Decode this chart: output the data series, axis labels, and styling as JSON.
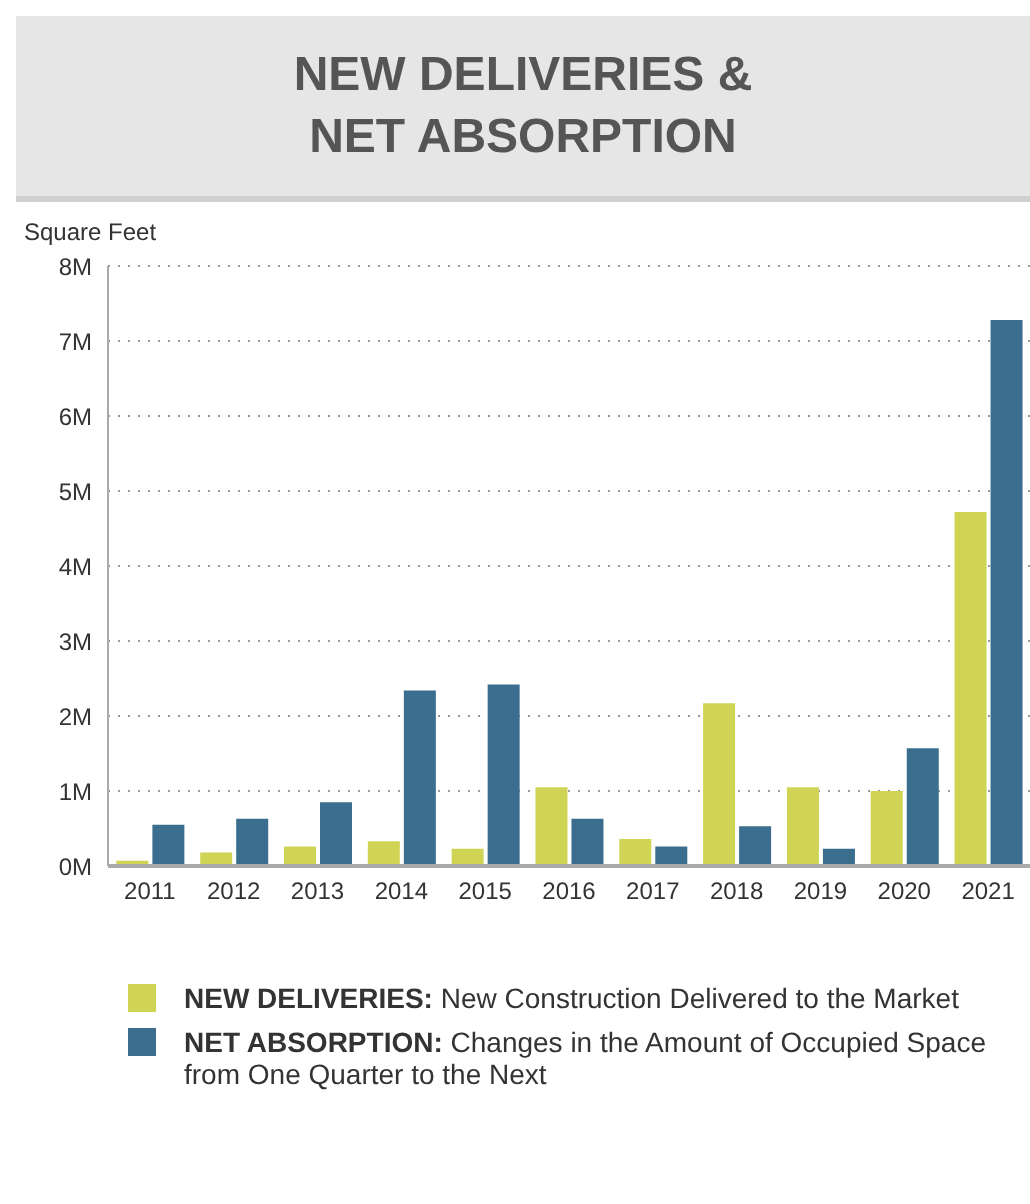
{
  "chart_data": {
    "type": "bar",
    "title": "NEW DELIVERIES &\nNET ABSORPTION",
    "ylabel": "Square Feet",
    "categories": [
      "2011",
      "2012",
      "2013",
      "2014",
      "2015",
      "2016",
      "2017",
      "2018",
      "2019",
      "2020",
      "2021"
    ],
    "series": [
      {
        "name": "NEW DELIVERIES: New Construction Delivered to the Market",
        "color": "#cfd454",
        "values": [
          0.07,
          0.18,
          0.26,
          0.33,
          0.23,
          1.05,
          0.36,
          2.17,
          1.05,
          1.0,
          4.72
        ]
      },
      {
        "name": "NET ABSORPTION: Changes in the Amount of Occupied Space from One Quarter to the Next",
        "color": "#3a6d8e",
        "values": [
          0.55,
          0.63,
          0.85,
          2.34,
          2.42,
          0.63,
          0.26,
          0.53,
          0.23,
          1.57,
          7.28
        ]
      }
    ],
    "ylim": [
      0,
      8
    ],
    "yticks": [
      {
        "value": 0,
        "label": "0M"
      },
      {
        "value": 1,
        "label": "1M"
      },
      {
        "value": 2,
        "label": "2M"
      },
      {
        "value": 3,
        "label": "3M"
      },
      {
        "value": 4,
        "label": "4M"
      },
      {
        "value": 5,
        "label": "5M"
      },
      {
        "value": 6,
        "label": "6M"
      },
      {
        "value": 7,
        "label": "7M"
      },
      {
        "value": 8,
        "label": "8M"
      }
    ],
    "grid": "y",
    "legend": "bottom"
  }
}
